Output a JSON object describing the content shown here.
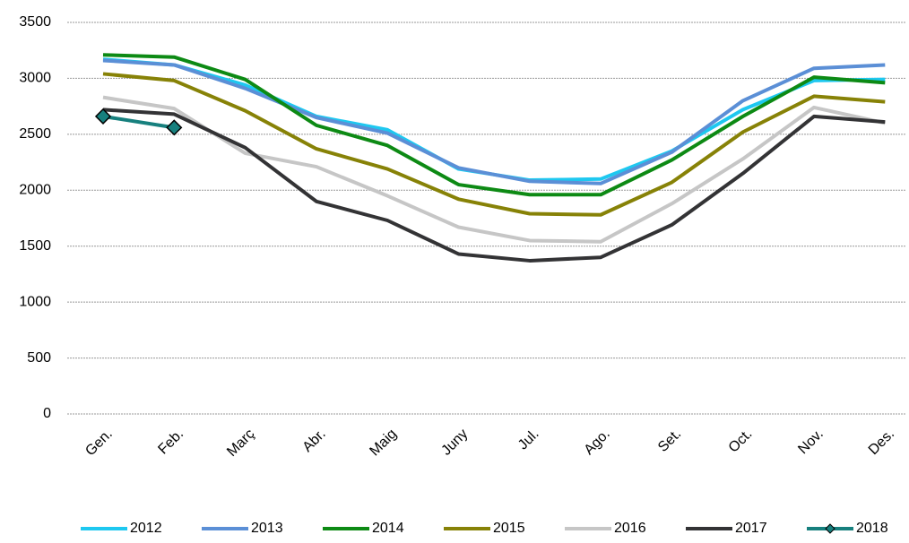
{
  "chart_data": {
    "type": "line",
    "categories": [
      "Gen.",
      "Feb.",
      "Març",
      "Abr.",
      "Maig",
      "Juny",
      "Jul.",
      "Ago.",
      "Set.",
      "Oct.",
      "Nov.",
      "Des."
    ],
    "ylim": [
      0,
      3500
    ],
    "yticks": [
      0,
      500,
      1000,
      1500,
      2000,
      2500,
      3000,
      3500
    ],
    "grid": true,
    "legend": "bottom",
    "series": [
      {
        "name": "2012",
        "color": "#1ec8f0",
        "values": [
          3170,
          3120,
          2940,
          2660,
          2540,
          2190,
          2090,
          2100,
          2350,
          2720,
          2980,
          2990
        ]
      },
      {
        "name": "2013",
        "color": "#5b8fd6",
        "values": [
          3160,
          3120,
          2910,
          2650,
          2510,
          2200,
          2080,
          2060,
          2340,
          2800,
          3090,
          3120
        ]
      },
      {
        "name": "2014",
        "color": "#0d8a14",
        "values": [
          3210,
          3190,
          2990,
          2580,
          2400,
          2050,
          1960,
          1960,
          2270,
          2660,
          3010,
          2960
        ]
      },
      {
        "name": "2015",
        "color": "#878207",
        "values": [
          3040,
          2980,
          2710,
          2370,
          2190,
          1920,
          1790,
          1780,
          2070,
          2520,
          2840,
          2790
        ]
      },
      {
        "name": "2016",
        "color": "#c6c6c6",
        "values": [
          2830,
          2730,
          2330,
          2210,
          1950,
          1670,
          1550,
          1540,
          1880,
          2280,
          2740,
          2600
        ]
      },
      {
        "name": "2017",
        "color": "#333335",
        "values": [
          2720,
          2680,
          2380,
          1900,
          1730,
          1430,
          1370,
          1400,
          1690,
          2150,
          2660,
          2610
        ]
      },
      {
        "name": "2018",
        "color": "#17807e",
        "marker": "diamond",
        "values": [
          2660,
          2560,
          null,
          null,
          null,
          null,
          null,
          null,
          null,
          null,
          null,
          null
        ]
      }
    ]
  }
}
